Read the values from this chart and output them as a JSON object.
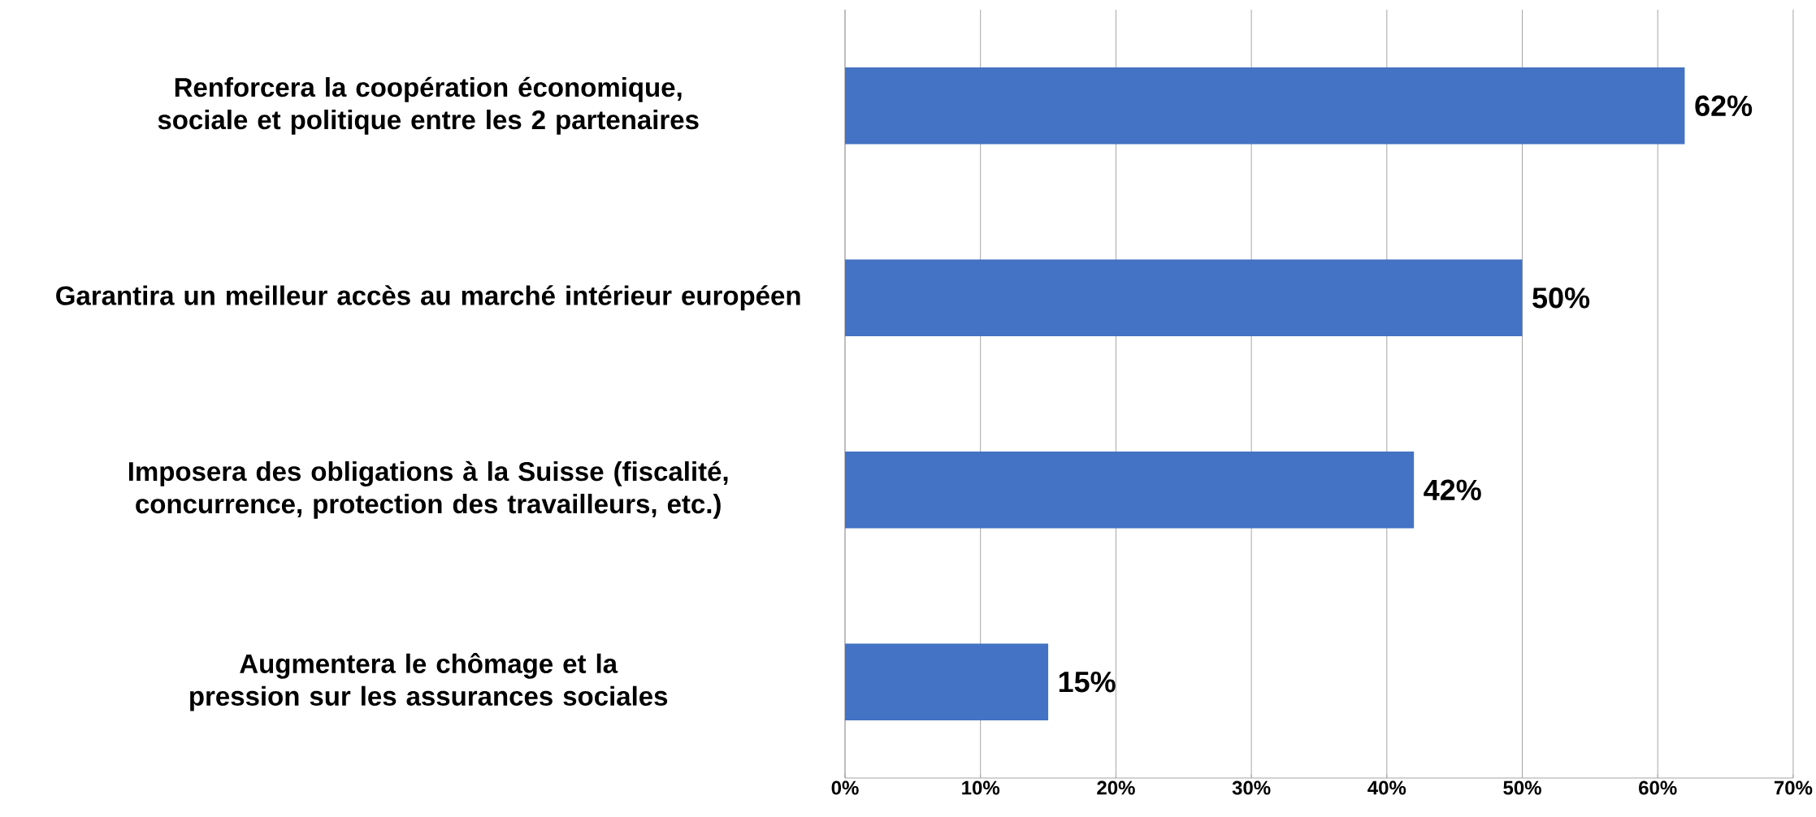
{
  "chart_data": {
    "type": "bar",
    "orientation": "horizontal",
    "categories": [
      "Renforcera la coopération économique, sociale et politique entre les 2 partenaires",
      "Garantira un meilleur accès au marché intérieur européen",
      "Imposera des obligations à la Suisse (fiscalité, concurrence, protection des travailleurs, etc.)",
      "Augmentera le chômage et la pression sur les assurances sociales"
    ],
    "values": [
      62,
      50,
      42,
      15
    ],
    "value_labels": [
      "62%",
      "50%",
      "42%",
      "15%"
    ],
    "color": "#4472c4",
    "xlim": [
      0,
      70
    ],
    "xticks": [
      {
        "value": 0,
        "label": "0%"
      },
      {
        "value": 10,
        "label": "10%"
      },
      {
        "value": 20,
        "label": "20%"
      },
      {
        "value": 30,
        "label": "30%"
      },
      {
        "value": 40,
        "label": "40%"
      },
      {
        "value": 50,
        "label": "50%"
      },
      {
        "value": 60,
        "label": "60%"
      },
      {
        "value": 70,
        "label": "70%"
      }
    ],
    "grid": "x"
  }
}
